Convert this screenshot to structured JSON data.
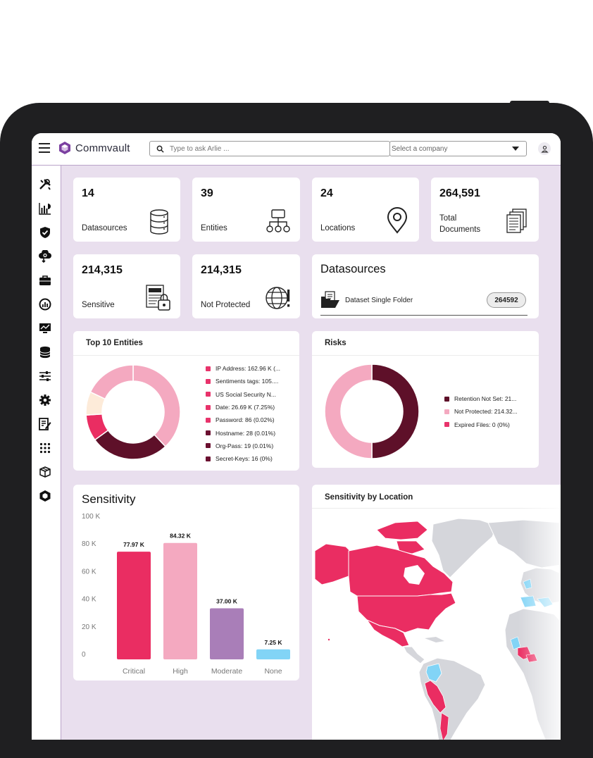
{
  "header": {
    "brand": "Commvault",
    "search_placeholder": "Type to ask Arlie ...",
    "company_placeholder": "Select a company"
  },
  "sidebar": {
    "icons": [
      "tools-icon",
      "reports-icon",
      "shield-icon",
      "cloud-sync-icon",
      "briefcase-icon",
      "gauge-icon",
      "monitor-chart-icon",
      "database-icon",
      "sliders-icon",
      "gear-icon",
      "edit-document-icon",
      "grid-apps-icon",
      "packages-icon",
      "cube-icon"
    ]
  },
  "stats": [
    {
      "value": "14",
      "label": "Datasources",
      "icon": "database-icon"
    },
    {
      "value": "39",
      "label": "Entities",
      "icon": "hierarchy-icon"
    },
    {
      "value": "24",
      "label": "Locations",
      "icon": "location-pin-icon"
    },
    {
      "value": "264,591",
      "label_line1": "Total",
      "label_line2": "Documents",
      "icon": "documents-icon"
    },
    {
      "value": "214,315",
      "label": "Sensitive",
      "icon": "locked-document-icon"
    },
    {
      "value": "214,315",
      "label": "Not Protected",
      "icon": "globe-warning-icon"
    }
  ],
  "datasources_panel": {
    "title": "Datasources",
    "item_name": "Dataset Single Folder",
    "item_count": "264592"
  },
  "entities_panel": {
    "title": "Top  10 Entities",
    "legend": [
      {
        "label": "IP Address: 162.96 K (...",
        "color": "#e8336b"
      },
      {
        "label": "Sentiments tags: 105....",
        "color": "#e8336b"
      },
      {
        "label": "US Social Security N...",
        "color": "#e8336b"
      },
      {
        "label": "Date: 26.69 K (7.25%)",
        "color": "#e8336b"
      },
      {
        "label": "Password: 86 (0.02%)",
        "color": "#e8336b"
      },
      {
        "label": "Hostname: 28 (0.01%)",
        "color": "#6b1030"
      },
      {
        "label": "Org-Pass: 19 (0.01%)",
        "color": "#6b1030"
      },
      {
        "label": "Secret-Keys: 16 (0%)",
        "color": "#6b1030"
      }
    ],
    "donut": [
      {
        "value": 38,
        "color": "#f4a9c0"
      },
      {
        "value": 27,
        "color": "#5e1029"
      },
      {
        "value": 9,
        "color": "#ea2d62"
      },
      {
        "value": 8,
        "color": "#fdebd9"
      },
      {
        "value": 18,
        "color": "#f4a9c0"
      }
    ]
  },
  "risks_panel": {
    "title": "Risks",
    "legend": [
      {
        "label": "Retention Not Set: 21...",
        "color": "#5e1029"
      },
      {
        "label": "Not Protected: 214.32...",
        "color": "#f4a9c0"
      },
      {
        "label": "Expired Files: 0 (0%)",
        "color": "#e8336b"
      }
    ],
    "donut": [
      {
        "value": 50,
        "color": "#5e1029"
      },
      {
        "value": 50,
        "color": "#f4a9c0"
      }
    ]
  },
  "sensitivity_panel": {
    "title": "Sensitivity",
    "chart_data": {
      "type": "bar",
      "categories": [
        "Critical",
        "High",
        "Moderate",
        "None"
      ],
      "values": [
        77.97,
        84.32,
        37.0,
        7.25
      ],
      "value_labels": [
        "77.97 K",
        "84.32 K",
        "37.00 K",
        "7.25 K"
      ],
      "colors": [
        "#ea2d62",
        "#f4a9c0",
        "#a97eb8",
        "#82d4f6"
      ],
      "ylim": [
        0,
        100
      ],
      "yticks": [
        "0",
        "20 K",
        "40 K",
        "60 K",
        "80 K",
        "100 K"
      ]
    }
  },
  "map_panel": {
    "title": "Sensitivity by Location"
  }
}
